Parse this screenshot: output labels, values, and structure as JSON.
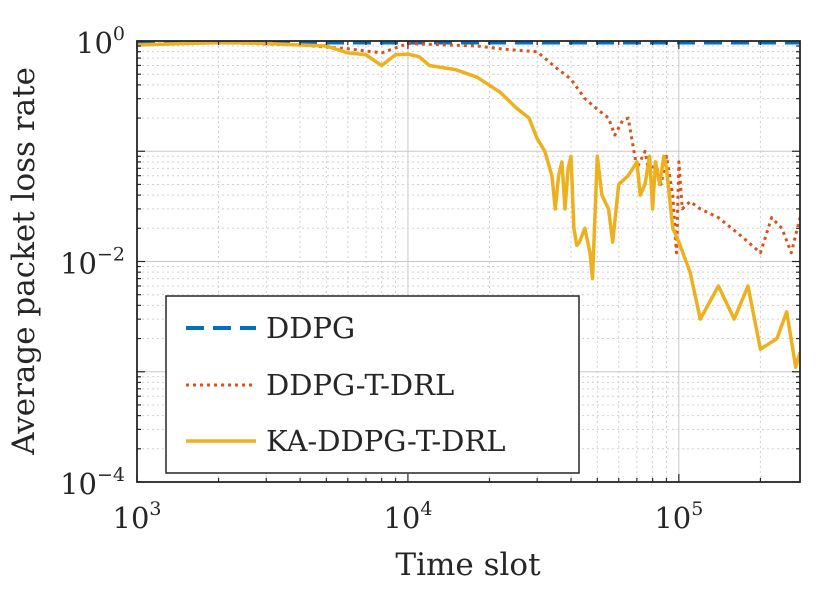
{
  "chart_data": {
    "type": "line",
    "xlabel": "Time slot",
    "ylabel": "Average packet loss rate",
    "xscale": "log",
    "yscale": "log",
    "xlim": [
      1000,
      280000
    ],
    "ylim": [
      0.0001,
      1
    ],
    "grid": "on (major and minor, dotted)",
    "legend_placement": "bottom-left",
    "x_ticks": [
      {
        "base": "10",
        "exp": "3",
        "value": 1000
      },
      {
        "base": "10",
        "exp": "4",
        "value": 10000
      },
      {
        "base": "10",
        "exp": "5",
        "value": 100000
      }
    ],
    "y_ticks": [
      {
        "base": "10",
        "exp": "0",
        "value": 1
      },
      {
        "base": "10",
        "exp": "−2",
        "value": 0.01
      },
      {
        "base": "10",
        "exp": "−4",
        "value": 0.0001
      }
    ],
    "series": [
      {
        "name": "DDPG",
        "color": "#0072BD",
        "style": "dashed",
        "x": [
          1000,
          2000,
          5000,
          10000,
          20000,
          50000,
          100000,
          200000,
          280000
        ],
        "y": [
          0.96,
          0.97,
          0.97,
          0.97,
          0.97,
          0.97,
          0.97,
          0.97,
          0.97
        ]
      },
      {
        "name": "DDPG-T-DRL",
        "color": "#D95319",
        "style": "dotted",
        "x": [
          1000,
          2000,
          4000,
          6000,
          8000,
          10000,
          14000,
          18000,
          22000,
          26000,
          30000,
          35000,
          40000,
          45000,
          50000,
          55000,
          58000,
          62000,
          65000,
          70000,
          75000,
          78000,
          82000,
          86000,
          90000,
          95000,
          98000,
          100000,
          103000,
          110000,
          120000,
          140000,
          170000,
          200000,
          220000,
          240000,
          260000,
          280000
        ],
        "y": [
          0.93,
          0.97,
          0.92,
          0.85,
          0.78,
          0.95,
          0.92,
          0.9,
          0.85,
          0.82,
          0.8,
          0.58,
          0.45,
          0.3,
          0.24,
          0.2,
          0.14,
          0.19,
          0.2,
          0.07,
          0.1,
          0.06,
          0.08,
          0.05,
          0.09,
          0.04,
          0.012,
          0.08,
          0.03,
          0.035,
          0.03,
          0.025,
          0.017,
          0.012,
          0.025,
          0.02,
          0.012,
          0.025
        ]
      },
      {
        "name": "KA-DDPG-T-DRL",
        "color": "#EDB120",
        "style": "solid",
        "x": [
          1000,
          1500,
          2200,
          3000,
          4000,
          5000,
          6000,
          7000,
          8000,
          9000,
          10000,
          11000,
          12000,
          15000,
          18000,
          22000,
          25000,
          28000,
          30000,
          32000,
          34000,
          35000,
          36000,
          37000,
          38000,
          39000,
          40000,
          41000,
          42000,
          43000,
          45000,
          47000,
          48000,
          50000,
          52000,
          55000,
          57000,
          60000,
          65000,
          70000,
          72000,
          75000,
          78000,
          80000,
          82000,
          85000,
          88000,
          90000,
          95000,
          100000,
          110000,
          120000,
          140000,
          160000,
          180000,
          200000,
          230000,
          250000,
          270000,
          280000
        ],
        "y": [
          0.92,
          0.95,
          0.97,
          0.95,
          0.92,
          0.9,
          0.78,
          0.75,
          0.6,
          0.75,
          0.76,
          0.72,
          0.6,
          0.55,
          0.47,
          0.34,
          0.25,
          0.2,
          0.13,
          0.1,
          0.06,
          0.03,
          0.06,
          0.08,
          0.03,
          0.07,
          0.09,
          0.02,
          0.014,
          0.015,
          0.02,
          0.012,
          0.007,
          0.09,
          0.04,
          0.03,
          0.015,
          0.05,
          0.06,
          0.08,
          0.04,
          0.05,
          0.09,
          0.03,
          0.08,
          0.05,
          0.09,
          0.07,
          0.02,
          0.015,
          0.008,
          0.003,
          0.006,
          0.003,
          0.006,
          0.0016,
          0.002,
          0.0035,
          0.0011,
          0.0015
        ]
      }
    ]
  }
}
